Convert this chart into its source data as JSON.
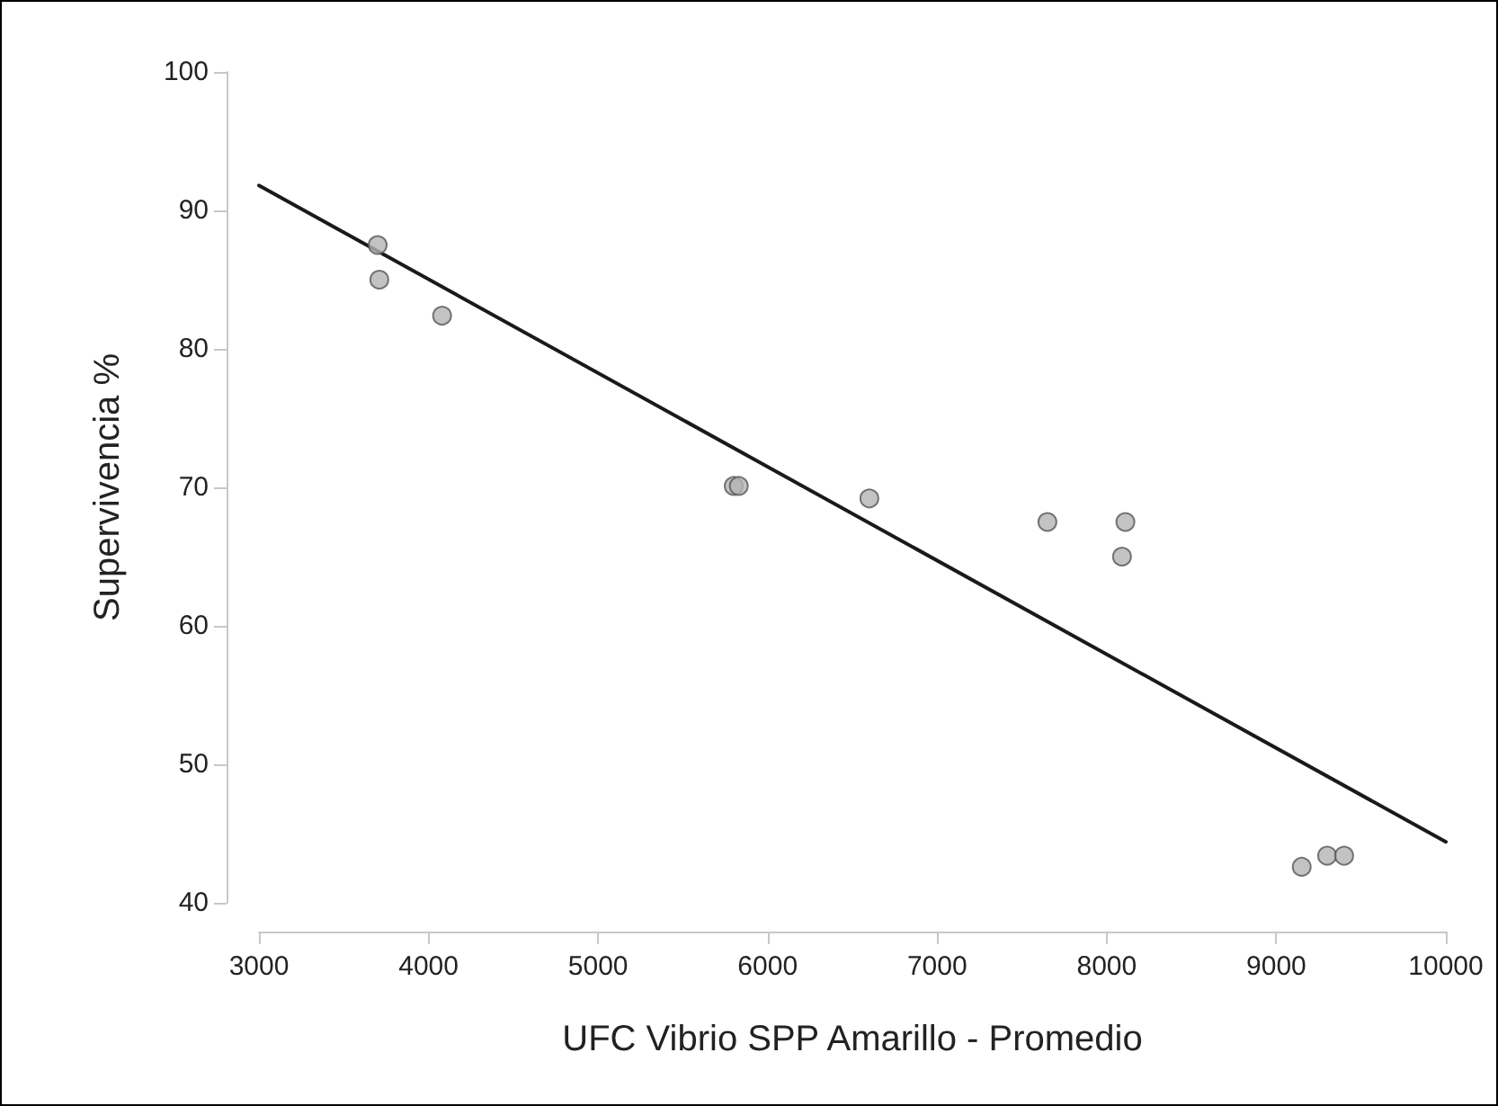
{
  "chart_data": {
    "type": "scatter",
    "xlabel": "UFC Vibrio SPP Amarillo - Promedio",
    "ylabel": "Supervivencia %",
    "xlim": [
      3000,
      10000
    ],
    "ylim": [
      40,
      100
    ],
    "xticks": [
      3000,
      4000,
      5000,
      6000,
      7000,
      8000,
      9000,
      10000
    ],
    "yticks": [
      40,
      50,
      60,
      70,
      80,
      90,
      100
    ],
    "grid": false,
    "marker": "circle",
    "series": [
      {
        "color": "#b4b4b4",
        "x": [
          3700,
          3710,
          4080,
          5800,
          5830,
          6600,
          7650,
          8110,
          8090,
          9150,
          9300,
          9400
        ],
        "values": [
          87.5,
          85.0,
          82.4,
          70.1,
          70.1,
          69.2,
          67.5,
          67.5,
          65.0,
          42.6,
          43.4,
          43.4
        ]
      },
      {
        "type": "line",
        "color": "#1a1a1a",
        "line_style": "solid",
        "marker": "none",
        "x": [
          3000,
          10000
        ],
        "values": [
          91.8,
          44.4
        ]
      }
    ]
  }
}
